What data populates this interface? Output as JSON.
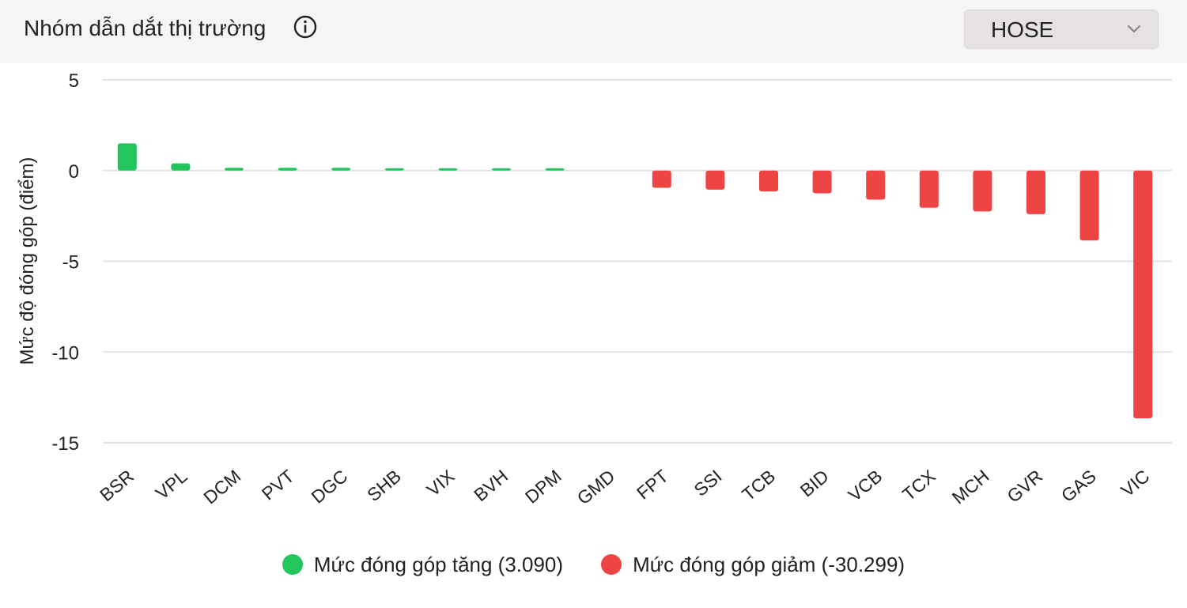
{
  "header": {
    "title": "Nhóm dẫn dắt thị trường",
    "info_icon": "info-circle-icon",
    "exchange_dropdown": {
      "value": "HOSE",
      "icon": "chevron-down-icon"
    }
  },
  "chart_data": {
    "type": "bar",
    "ylabel": "Mức độ đóng góp (điểm)",
    "xlabel": "",
    "ylim": [
      -15,
      5
    ],
    "yticks": [
      5,
      0,
      -5,
      -10,
      -15
    ],
    "grid": true,
    "legend_position": "bottom",
    "categories": [
      "BSR",
      "VPL",
      "DCM",
      "PVT",
      "DGC",
      "SHB",
      "VIX",
      "BVH",
      "DPM",
      "GMD",
      "FPT",
      "SSI",
      "TCB",
      "BID",
      "VCB",
      "TCX",
      "MCH",
      "GVR",
      "GAS",
      "VIC"
    ],
    "values": [
      1.5,
      0.4,
      0.15,
      0.15,
      0.15,
      0.08,
      0.08,
      0.08,
      0.08,
      0.0,
      -0.95,
      -1.05,
      -1.15,
      -1.25,
      -1.6,
      -2.05,
      -2.25,
      -2.4,
      -3.85,
      -13.65
    ],
    "colors": {
      "positive": "#22c55e",
      "negative": "#ef4444",
      "grid": "#e3e3e3"
    },
    "legend": [
      {
        "label": "Mức đóng góp tăng (3.090)",
        "color": "#22c55e"
      },
      {
        "label": "Mức đóng góp giảm (-30.299)",
        "color": "#ef4444"
      }
    ]
  }
}
